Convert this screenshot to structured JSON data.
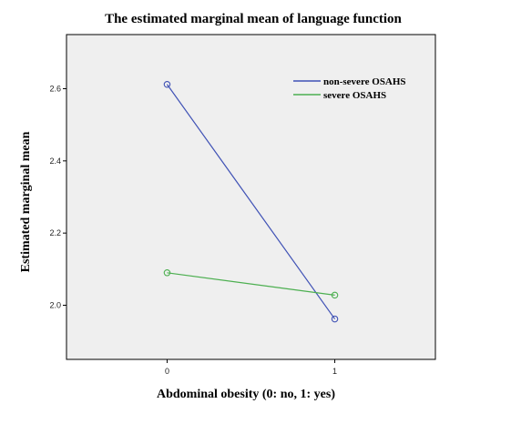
{
  "chart_data": {
    "type": "line",
    "title": "The estimated marginal mean of language function",
    "xlabel": "Abdominal obesity (0: no, 1: yes)",
    "ylabel": "Estimated marginal mean",
    "categories": [
      "0",
      "1"
    ],
    "x": [
      0,
      1
    ],
    "xlim": [
      -0.6,
      1.6
    ],
    "ylim": [
      1.85,
      2.75
    ],
    "yticks": [
      2.0,
      2.2,
      2.4,
      2.6
    ],
    "yticklabels": [
      "2.0",
      "2.2",
      "2.4",
      "2.6"
    ],
    "series": [
      {
        "name": "non-severe OSAHS",
        "color": "#3f51b5",
        "values": [
          2.612,
          1.962
        ]
      },
      {
        "name": "severe OSAHS",
        "color": "#4caf50",
        "values": [
          2.09,
          2.028
        ]
      }
    ],
    "legend_position": "top-right",
    "grid": false,
    "plot_background": "#efefef",
    "marker": "open-circle"
  }
}
